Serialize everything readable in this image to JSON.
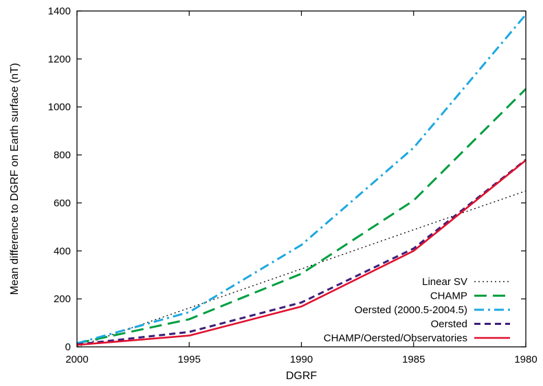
{
  "chart_data": {
    "type": "line",
    "xlabel": "DGRF",
    "ylabel": "Mean difference to DGRF on Earth surface (nT)",
    "x_reversed": true,
    "xlim": [
      2000,
      1980
    ],
    "ylim": [
      0,
      1400
    ],
    "x_ticks": [
      2000,
      1995,
      1990,
      1985,
      1980
    ],
    "y_ticks": [
      0,
      200,
      400,
      600,
      800,
      1000,
      1200,
      1400
    ],
    "grid": false,
    "legend_position": "bottom-right",
    "x": [
      2000,
      1995,
      1990,
      1985,
      1980
    ],
    "series": [
      {
        "name": "Linear SV",
        "color": "#000000",
        "dash": "dotted",
        "values": [
          0,
          162,
          325,
          488,
          650
        ]
      },
      {
        "name": "CHAMP",
        "color": "#009e40",
        "dash": "long-dash",
        "values": [
          15,
          115,
          305,
          610,
          1075
        ]
      },
      {
        "name": "Oersted (2000.5-2004.5)",
        "color": "#1ea8e0",
        "dash": "dash-dot",
        "values": [
          15,
          145,
          425,
          830,
          1385
        ]
      },
      {
        "name": "Oersted",
        "color": "#3c1e78",
        "dash": "short-dash",
        "values": [
          10,
          62,
          185,
          410,
          780
        ]
      },
      {
        "name": "CHAMP/Oersted/Observatories",
        "color": "#e0102e",
        "dash": "solid",
        "values": [
          8,
          47,
          168,
          400,
          778
        ]
      }
    ]
  }
}
